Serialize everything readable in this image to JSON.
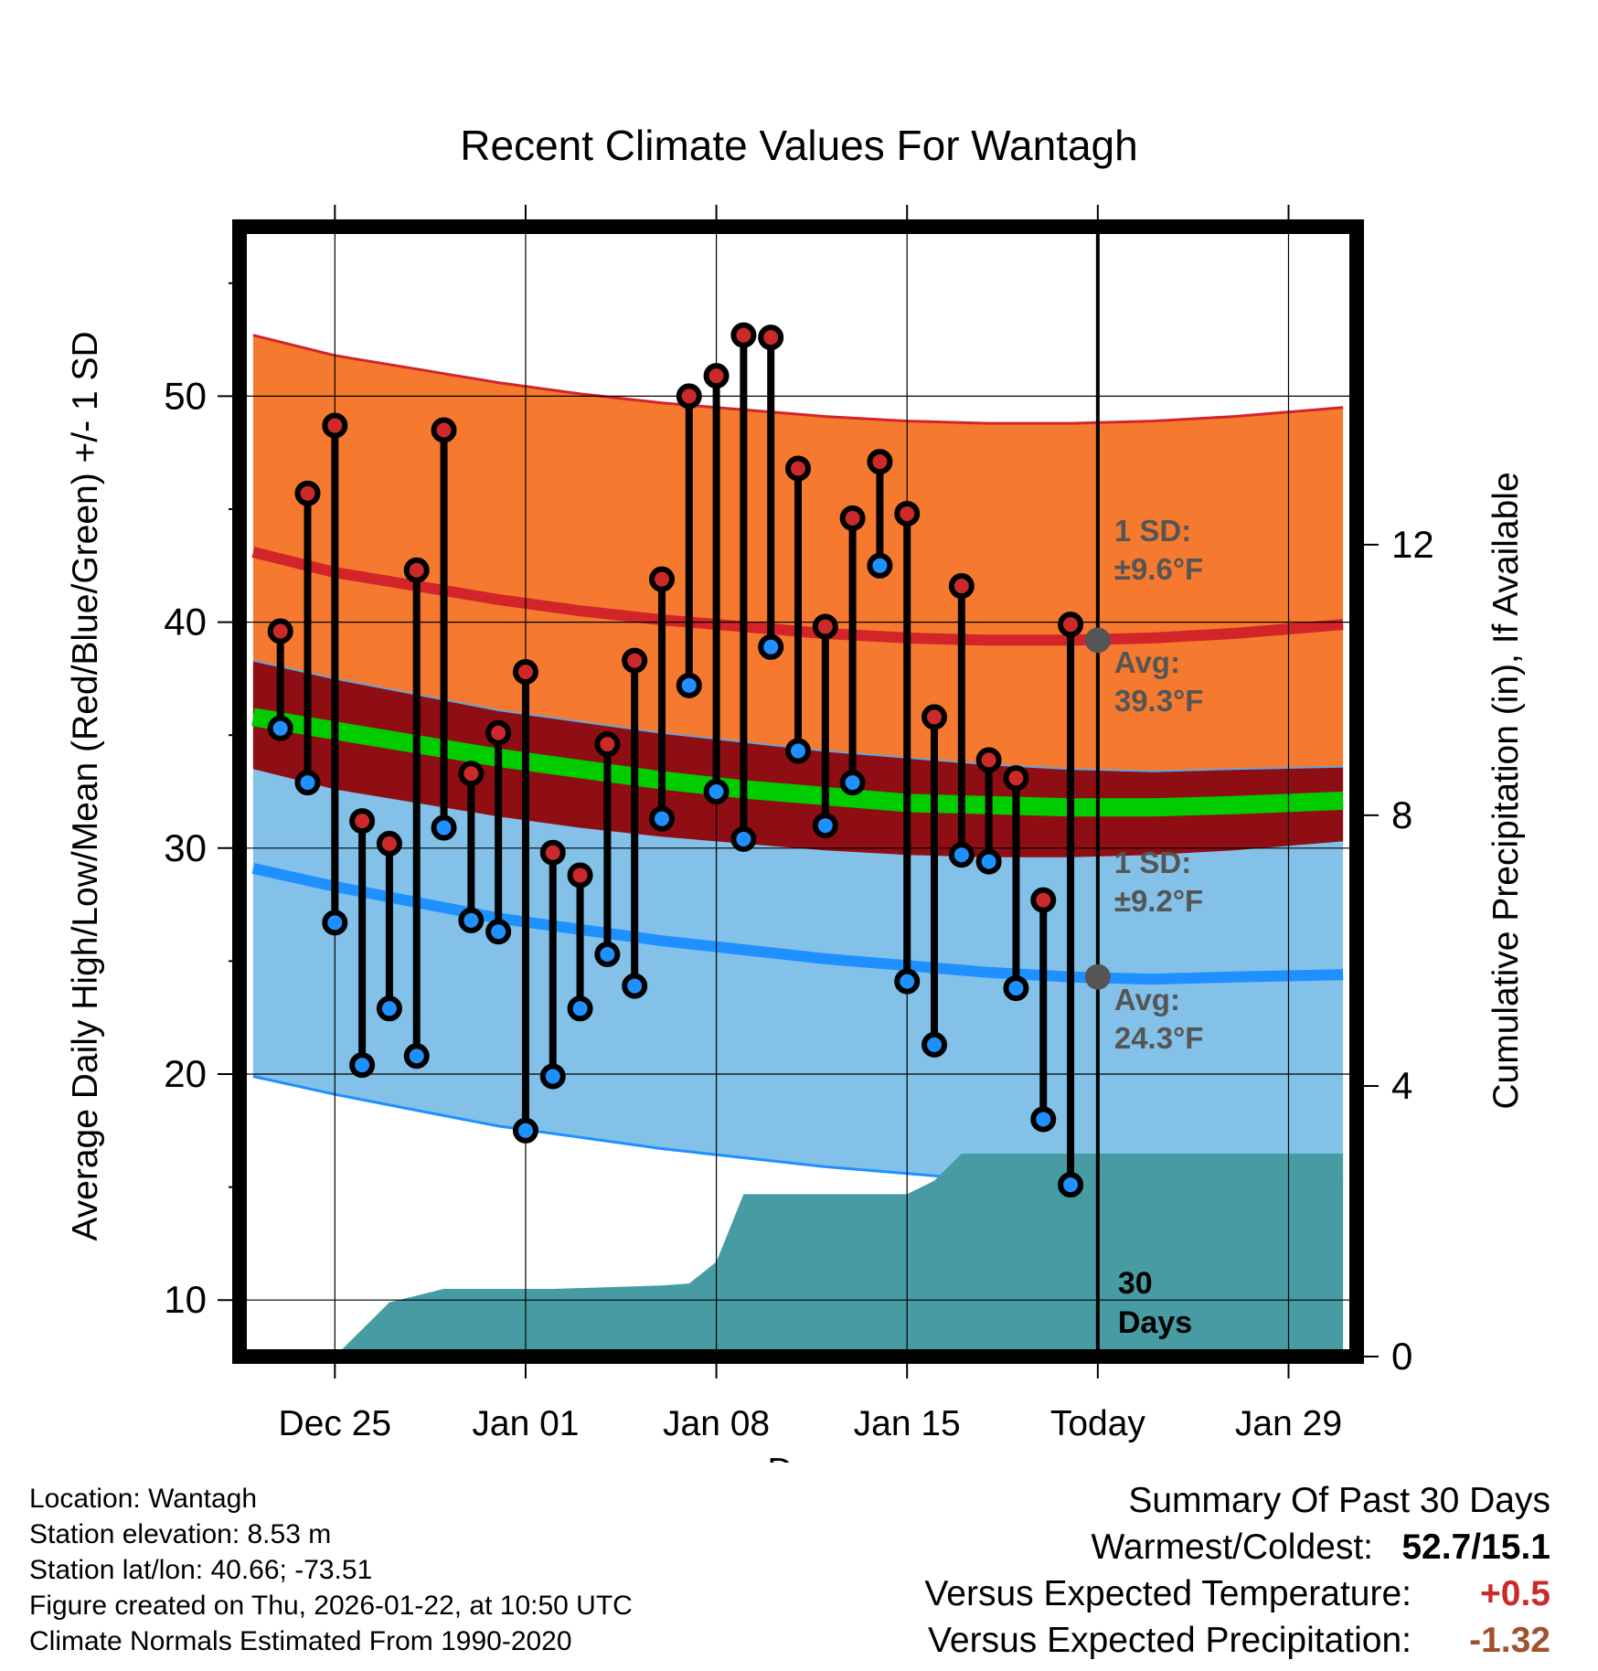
{
  "chart_data": {
    "type": "line",
    "title": "Recent Climate Values For Wantagh",
    "xlabel": "Day",
    "ylabel": "Average Daily High/Low/Mean (Red/Blue/Green) +/- 1 SD",
    "y2label": "Cumulative Precipitation (in), If Available",
    "ylim": [
      7.5,
      57.5
    ],
    "y2lim": [
      0,
      16.7
    ],
    "xlim": [
      -3.5,
      37.5
    ],
    "yticks": [
      10,
      20,
      30,
      40,
      50
    ],
    "y2ticks": [
      0,
      4,
      8,
      12
    ],
    "xticks": [
      {
        "day": 0,
        "label": "Dec 25"
      },
      {
        "day": 7,
        "label": "Jan 01"
      },
      {
        "day": 14,
        "label": "Jan 08"
      },
      {
        "day": 21,
        "label": "Jan 15"
      },
      {
        "day": 28,
        "label": "Today"
      },
      {
        "day": 35,
        "label": "Jan 29"
      }
    ],
    "today_day": 28,
    "daily_high": [
      39.6,
      45.7,
      48.7,
      31.2,
      30.2,
      42.3,
      48.5,
      33.3,
      35.1,
      37.8,
      29.8,
      28.8,
      34.6,
      38.3,
      41.9,
      50.0,
      50.9,
      52.7,
      52.6,
      46.8,
      39.8,
      44.6,
      47.1,
      44.8,
      35.8,
      41.6,
      33.9,
      33.1,
      27.7,
      39.9
    ],
    "daily_low": [
      35.3,
      32.9,
      26.7,
      20.4,
      22.9,
      20.8,
      30.9,
      26.8,
      26.3,
      17.5,
      19.9,
      22.9,
      25.3,
      23.9,
      31.3,
      37.2,
      32.5,
      30.4,
      38.9,
      34.3,
      31.0,
      32.9,
      42.5,
      24.1,
      21.3,
      29.7,
      29.4,
      23.8,
      18.0,
      15.1
    ],
    "first_day": -2,
    "normals_days": [
      -3,
      0,
      3,
      6,
      9,
      12,
      15,
      18,
      21,
      24,
      27,
      30,
      33,
      37
    ],
    "normal_high": [
      43.1,
      42.2,
      41.6,
      41.0,
      40.5,
      40.1,
      39.8,
      39.5,
      39.3,
      39.2,
      39.2,
      39.3,
      39.5,
      39.9
    ],
    "normal_high_sd": 9.6,
    "normal_low": [
      29.1,
      28.3,
      27.6,
      26.9,
      26.4,
      25.9,
      25.5,
      25.1,
      24.8,
      24.5,
      24.3,
      24.2,
      24.3,
      24.4
    ],
    "normal_low_sd": 9.2,
    "normal_mean": [
      35.8,
      35.2,
      34.6,
      34.0,
      33.5,
      33.0,
      32.6,
      32.3,
      32.0,
      31.9,
      31.8,
      31.8,
      31.9,
      32.1
    ],
    "precip_days": [
      -3,
      0,
      1,
      2,
      4,
      8,
      12,
      13,
      14,
      15,
      21,
      22,
      23,
      37
    ],
    "precip_cum": [
      0.0,
      0.0,
      0.4,
      0.8,
      1.0,
      1.0,
      1.05,
      1.08,
      1.4,
      2.4,
      2.4,
      2.6,
      3.0,
      3.0
    ],
    "annotations": {
      "high_sd": "1 SD:",
      "high_sd_val": "±9.6°F",
      "high_avg": "Avg:",
      "high_avg_val": "39.3°F",
      "low_sd": "1 SD:",
      "low_sd_val": "±9.2°F",
      "low_avg": "Avg:",
      "low_avg_val": "24.3°F",
      "days_line1": "30",
      "days_line2": "Days"
    },
    "colors": {
      "high_band": "#f57a2f",
      "high_line": "#d3242a",
      "low_band": "#83c1e8",
      "low_line": "#1e90ff",
      "mean_band": "#8f0e14",
      "mean_line": "#00cc00",
      "precip": "#479ca4",
      "high_dot": "#cc2a2a",
      "low_dot": "#1e90ff",
      "annot": "#555555"
    }
  },
  "footer": {
    "location": "Location: Wantagh",
    "elevation": "Station elevation: 8.53 m",
    "latlon": "Station lat/lon: 40.66; -73.51",
    "created": "Figure created on Thu, 2026-01-22, at 10:50 UTC",
    "normals": "Climate Normals Estimated From 1990-2020"
  },
  "summary": {
    "heading": "Summary Of Past 30 Days",
    "warmest_label": "Warmest/Coldest:",
    "warmest_value": "52.7/15.1",
    "temp_label": "Versus Expected Temperature:",
    "temp_value": "+0.5",
    "precip_label": "Versus Expected Precipitation:",
    "precip_value": "-1.32"
  }
}
